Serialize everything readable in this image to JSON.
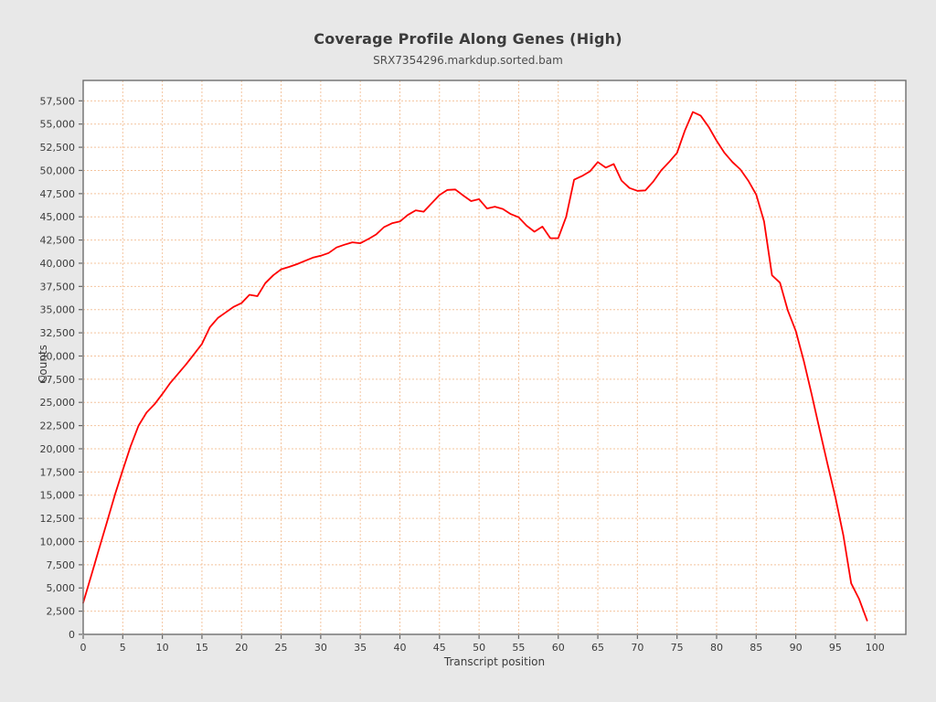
{
  "page": {
    "background": "#e8e8e8"
  },
  "chart": {
    "title": "Coverage Profile Along Genes (High)",
    "subtitle": "SRX7354296.markdup.sorted.bam",
    "xlabel": "Transcript position",
    "ylabel": "Counts"
  },
  "chart_data": {
    "type": "line",
    "title": "Coverage Profile Along Genes (High)",
    "subtitle": "SRX7354296.markdup.sorted.bam",
    "xlabel": "Transcript position",
    "ylabel": "Counts",
    "legend_position": "none",
    "grid": {
      "show": true,
      "color": "#f4c49e",
      "style": "dashed"
    },
    "frame_color": "#6e6e6e",
    "plot_background": "#ffffff",
    "xlim": [
      0,
      103.9
    ],
    "ylim": [
      0,
      59700
    ],
    "x_ticks": [
      0,
      5,
      10,
      15,
      20,
      25,
      30,
      35,
      40,
      45,
      50,
      55,
      60,
      65,
      70,
      75,
      80,
      85,
      90,
      95,
      100
    ],
    "y_ticks": [
      0,
      2500,
      5000,
      7500,
      10000,
      12500,
      15000,
      17500,
      20000,
      22500,
      25000,
      27500,
      30000,
      32500,
      35000,
      37500,
      40000,
      42500,
      45000,
      47500,
      50000,
      52500,
      55000,
      57500
    ],
    "y_tick_labels": [
      "0",
      "2,500",
      "5,000",
      "7,500",
      "10,000",
      "12,500",
      "15,000",
      "17,500",
      "20,000",
      "22,500",
      "25,000",
      "27,500",
      "30,000",
      "32,500",
      "35,000",
      "37,500",
      "40,000",
      "42,500",
      "45,000",
      "47,500",
      "50,000",
      "52,500",
      "55,000",
      "57,500"
    ],
    "series": [
      {
        "name": "coverage",
        "color": "#ff0000",
        "x": [
          0,
          1,
          2,
          3,
          4,
          5,
          6,
          7,
          8,
          9,
          10,
          11,
          12,
          13,
          14,
          15,
          16,
          17,
          18,
          19,
          20,
          21,
          22,
          23,
          24,
          25,
          26,
          27,
          28,
          29,
          30,
          31,
          32,
          33,
          34,
          35,
          36,
          37,
          38,
          39,
          40,
          41,
          42,
          43,
          44,
          45,
          46,
          47,
          48,
          49,
          50,
          51,
          52,
          53,
          54,
          55,
          56,
          57,
          58,
          59,
          60,
          61,
          62,
          63,
          64,
          65,
          66,
          67,
          68,
          69,
          70,
          71,
          72,
          73,
          74,
          75,
          76,
          77,
          78,
          79,
          80,
          81,
          82,
          83,
          84,
          85,
          86,
          87,
          88,
          89,
          90,
          91,
          92,
          93,
          94,
          95,
          96,
          97,
          98,
          99
        ],
        "y": [
          3400,
          6300,
          9200,
          12100,
          15000,
          17700,
          20300,
          22500,
          23900,
          24800,
          25900,
          27100,
          28100,
          29100,
          30200,
          31300,
          33100,
          34100,
          34700,
          35300,
          35700,
          36600,
          36450,
          37850,
          38700,
          39350,
          39600,
          39900,
          40250,
          40600,
          40800,
          41100,
          41700,
          42000,
          42250,
          42150,
          42600,
          43100,
          43900,
          44300,
          44500,
          45200,
          45700,
          45550,
          46450,
          47350,
          47900,
          47950,
          47300,
          46700,
          46900,
          45900,
          46100,
          45850,
          45300,
          44950,
          44050,
          43400,
          43950,
          42700,
          42700,
          45000,
          49000,
          49400,
          49900,
          50900,
          50300,
          50700,
          48900,
          48100,
          47800,
          47850,
          48800,
          50000,
          50900,
          51900,
          54300,
          56300,
          55900,
          54700,
          53200,
          51900,
          50900,
          50100,
          48900,
          47400,
          44500,
          38700,
          37900,
          34900,
          32700,
          29500,
          25900,
          22100,
          18400,
          14800,
          10700,
          5500,
          3800,
          1500
        ]
      }
    ]
  }
}
